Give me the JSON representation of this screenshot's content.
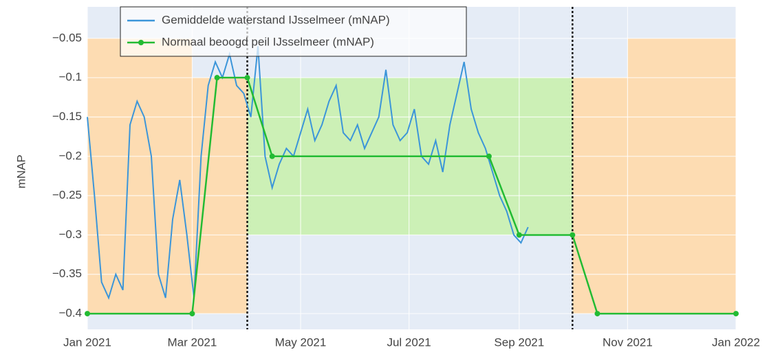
{
  "chart_data": {
    "type": "line",
    "ylabel": "mNAP",
    "xlim": [
      "2021-01-01",
      "2022-01-01"
    ],
    "ylim": [
      -0.42,
      -0.01
    ],
    "xticks": [
      {
        "value": "2021-01-01",
        "label": "Jan 2021"
      },
      {
        "value": "2021-03-01",
        "label": "Mar 2021"
      },
      {
        "value": "2021-05-01",
        "label": "May 2021"
      },
      {
        "value": "2021-07-01",
        "label": "Jul 2021"
      },
      {
        "value": "2021-09-01",
        "label": "Sep 2021"
      },
      {
        "value": "2021-11-01",
        "label": "Nov 2021"
      },
      {
        "value": "2022-01-01",
        "label": "Jan 2022"
      }
    ],
    "yticks": [
      {
        "value": -0.4,
        "label": "−0.4"
      },
      {
        "value": -0.35,
        "label": "−0.35"
      },
      {
        "value": -0.3,
        "label": "−0.3"
      },
      {
        "value": -0.25,
        "label": "−0.25"
      },
      {
        "value": -0.2,
        "label": "−0.2"
      },
      {
        "value": -0.15,
        "label": "−0.15"
      },
      {
        "value": -0.1,
        "label": "−0.1"
      },
      {
        "value": -0.05,
        "label": "−0.05"
      }
    ],
    "grid": true,
    "legend": "top-left",
    "bands": [
      {
        "x": [
          "2021-01-01",
          "2021-03-01"
        ],
        "y": [
          -0.4,
          -0.05
        ],
        "color": "#fddcb2"
      },
      {
        "x": [
          "2021-03-01",
          "2021-04-01"
        ],
        "y": [
          -0.4,
          -0.1
        ],
        "color": "#fddcb2"
      },
      {
        "x": [
          "2021-04-01",
          "2021-10-01"
        ],
        "y": [
          -0.3,
          -0.1
        ],
        "color": "#ccf0b6"
      },
      {
        "x": [
          "2021-10-01",
          "2021-11-01"
        ],
        "y": [
          -0.4,
          -0.1
        ],
        "color": "#fddcb2"
      },
      {
        "x": [
          "2021-11-01",
          "2022-01-01"
        ],
        "y": [
          -0.4,
          -0.05
        ],
        "color": "#fddcb2"
      }
    ],
    "vlines": [
      "2021-04-01",
      "2021-10-01"
    ],
    "series": [
      {
        "name": "Gemiddelde waterstand IJsselmeer (mNAP)",
        "color": "#3b95d9",
        "markers": false,
        "x": [
          "2021-01-01",
          "2021-01-05",
          "2021-01-09",
          "2021-01-13",
          "2021-01-17",
          "2021-01-21",
          "2021-01-25",
          "2021-01-29",
          "2021-02-02",
          "2021-02-06",
          "2021-02-10",
          "2021-02-14",
          "2021-02-18",
          "2021-02-22",
          "2021-02-26",
          "2021-03-02",
          "2021-03-06",
          "2021-03-10",
          "2021-03-14",
          "2021-03-18",
          "2021-03-22",
          "2021-03-26",
          "2021-03-30",
          "2021-04-03",
          "2021-04-07",
          "2021-04-11",
          "2021-04-15",
          "2021-04-19",
          "2021-04-23",
          "2021-04-27",
          "2021-05-01",
          "2021-05-05",
          "2021-05-09",
          "2021-05-13",
          "2021-05-17",
          "2021-05-21",
          "2021-05-25",
          "2021-05-29",
          "2021-06-02",
          "2021-06-06",
          "2021-06-10",
          "2021-06-14",
          "2021-06-18",
          "2021-06-22",
          "2021-06-26",
          "2021-06-30",
          "2021-07-04",
          "2021-07-08",
          "2021-07-12",
          "2021-07-16",
          "2021-07-20",
          "2021-07-24",
          "2021-07-28",
          "2021-08-01",
          "2021-08-05",
          "2021-08-09",
          "2021-08-13",
          "2021-08-17",
          "2021-08-21",
          "2021-08-25",
          "2021-08-29",
          "2021-09-02",
          "2021-09-06"
        ],
        "values": [
          -0.15,
          -0.25,
          -0.36,
          -0.38,
          -0.35,
          -0.37,
          -0.16,
          -0.13,
          -0.15,
          -0.2,
          -0.35,
          -0.38,
          -0.28,
          -0.23,
          -0.3,
          -0.38,
          -0.2,
          -0.11,
          -0.08,
          -0.1,
          -0.07,
          -0.11,
          -0.12,
          -0.15,
          -0.06,
          -0.2,
          -0.24,
          -0.21,
          -0.19,
          -0.2,
          -0.17,
          -0.14,
          -0.18,
          -0.16,
          -0.13,
          -0.11,
          -0.17,
          -0.18,
          -0.16,
          -0.19,
          -0.17,
          -0.15,
          -0.09,
          -0.16,
          -0.18,
          -0.17,
          -0.14,
          -0.2,
          -0.21,
          -0.18,
          -0.22,
          -0.16,
          -0.12,
          -0.08,
          -0.14,
          -0.17,
          -0.19,
          -0.22,
          -0.25,
          -0.27,
          -0.3,
          -0.31,
          -0.29
        ]
      },
      {
        "name": "Normaal beoogd peil IJsselmeer (mNAP)",
        "color": "#22bb33",
        "markers": true,
        "x": [
          "2021-01-01",
          "2021-03-01",
          "2021-03-15",
          "2021-04-01",
          "2021-04-15",
          "2021-08-15",
          "2021-09-01",
          "2021-10-01",
          "2021-10-15",
          "2022-01-01"
        ],
        "values": [
          -0.4,
          -0.4,
          -0.1,
          -0.1,
          -0.2,
          -0.2,
          -0.3,
          -0.3,
          -0.4,
          -0.4
        ]
      }
    ]
  }
}
